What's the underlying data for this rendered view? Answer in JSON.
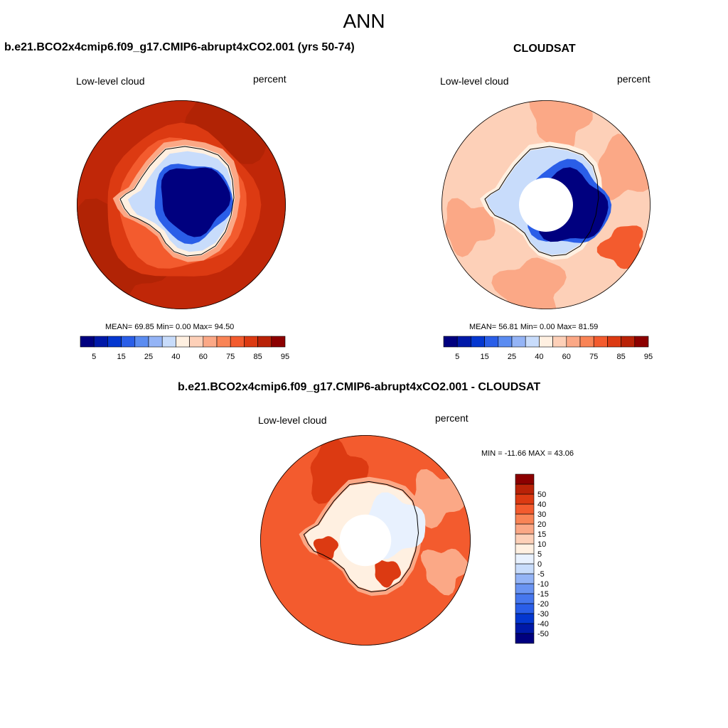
{
  "main_title": "ANN",
  "panels": [
    {
      "id": "model",
      "title": "b.e21.BCO2x4cmip6.f09_g17.CMIP6-abrupt4xCO2.001 (yrs 50-74)",
      "variable": "Low-level cloud",
      "units": "percent",
      "stats": "MEAN=  69.85  Min=   0.00  Max=  94.50"
    },
    {
      "id": "obs",
      "title": "CLOUDSAT",
      "variable": "Low-level cloud",
      "units": "percent",
      "stats": "MEAN=  56.81  Min=   0.00  Max=  81.59"
    },
    {
      "id": "diff",
      "title": "b.e21.BCO2x4cmip6.f09_g17.CMIP6-abrupt4xCO2.001 - CLOUDSAT",
      "variable": "Low-level cloud",
      "units": "percent",
      "stats": "MIN = -11.66 MAX =  43.06"
    }
  ],
  "colorbar_abs": {
    "colors": [
      "#00007f",
      "#0019a8",
      "#0437d0",
      "#2a5ee8",
      "#5b8cf1",
      "#94b4f6",
      "#c8dcfb",
      "#fff0e1",
      "#fdd0b8",
      "#fba886",
      "#f98456",
      "#f35b2e",
      "#dc3a12",
      "#b92207",
      "#8c0000"
    ],
    "tick_labels": [
      "5",
      "15",
      "25",
      "40",
      "60",
      "75",
      "85",
      "95"
    ]
  },
  "colorbar_diff": {
    "colors": [
      "#00007f",
      "#0019a8",
      "#0437d0",
      "#2a5ee8",
      "#4677ee",
      "#6a94f2",
      "#94b4f6",
      "#c8dcfb",
      "#e8f1fe",
      "#fff0e1",
      "#fdd0b8",
      "#fba886",
      "#f98456",
      "#f35b2e",
      "#dc3a12",
      "#b92207",
      "#8c0000"
    ],
    "tick_labels": [
      "-50",
      "-40",
      "-30",
      "-20",
      "-15",
      "-10",
      "-5",
      "0",
      "5",
      "10",
      "15",
      "20",
      "30",
      "40",
      "50"
    ]
  },
  "map_colors": {
    "ocean_high": "#c02708",
    "ocean_dark": "#b12305",
    "ocean_mid": "#dc3a12",
    "orange": "#f35b2e",
    "salmon": "#fba886",
    "peach": "#fdd0b8",
    "cream": "#fff0e1",
    "ice_light": "#c8dcfb",
    "ice_mid": "#94b4f6",
    "blue": "#2a5ee8",
    "deep_blue": "#00007f",
    "coast": "#000000"
  }
}
